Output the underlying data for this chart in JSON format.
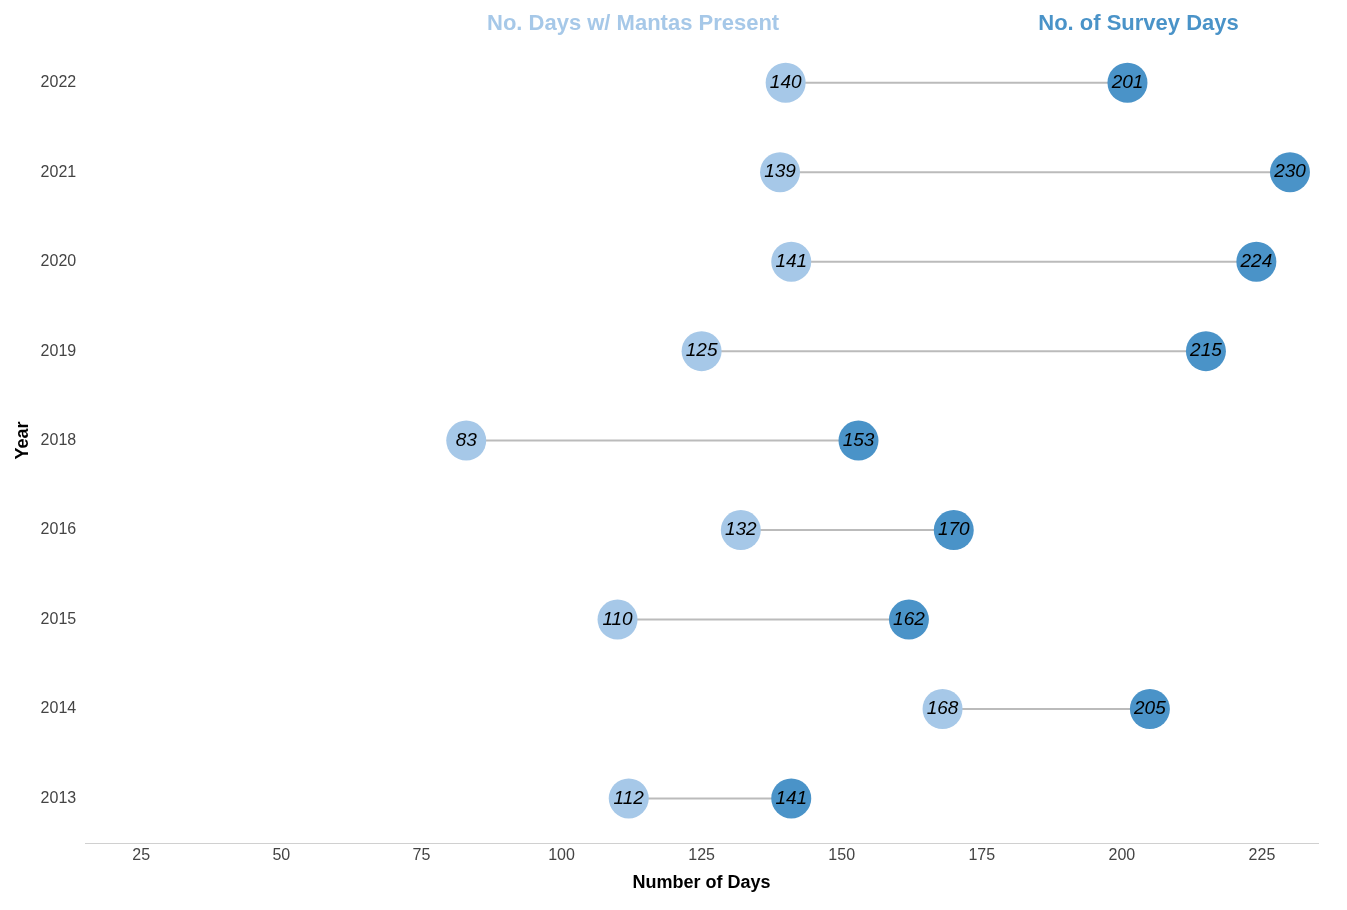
{
  "chart_data": {
    "type": "scatter",
    "orientation": "horizontal",
    "xlabel": "Number of Days",
    "ylabel": "Year",
    "categories": [
      "2022",
      "2021",
      "2020",
      "2019",
      "2018",
      "2016",
      "2015",
      "2014",
      "2013"
    ],
    "series": [
      {
        "name": "No. Days w/ Mantas Present",
        "color": "#a6c8e8",
        "values": [
          140,
          139,
          141,
          125,
          83,
          132,
          110,
          168,
          112
        ]
      },
      {
        "name": "No. of Survey Days",
        "color": "#4a93c8",
        "values": [
          201,
          230,
          224,
          215,
          153,
          170,
          162,
          205,
          141
        ]
      }
    ],
    "xlim": [
      15,
      235
    ],
    "xticks": [
      25,
      50,
      75,
      100,
      125,
      150,
      175,
      200,
      225
    ],
    "data_labels": true,
    "legend": "top",
    "grid": false,
    "marker": "circle"
  }
}
